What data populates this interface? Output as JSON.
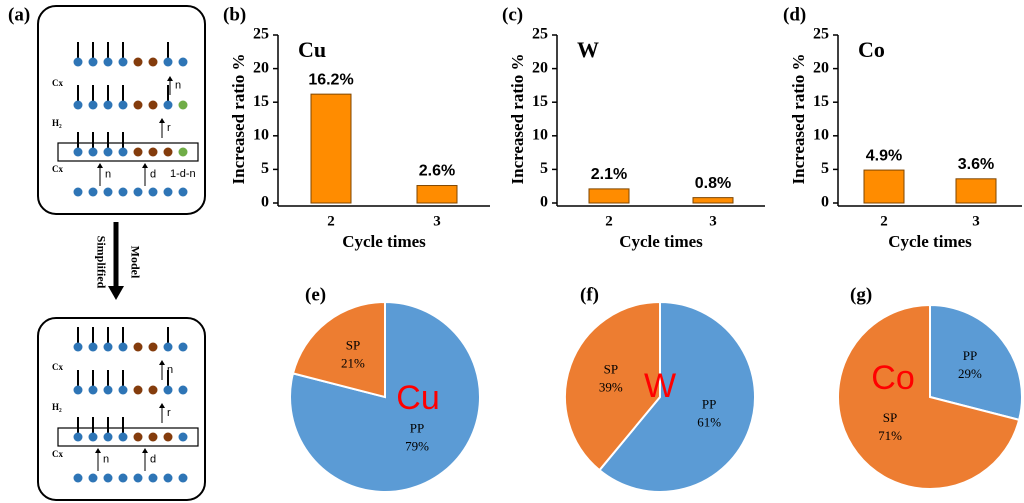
{
  "diagram": {
    "label": "(a)",
    "top_labels": [
      "Cx",
      "H₂",
      "Cx"
    ],
    "top_arrows": [
      "n",
      "r",
      "n",
      "d",
      "1-d-n"
    ],
    "bottom_labels": [
      "Cx",
      "H₂",
      "Cx"
    ],
    "bottom_arrows": [
      "n",
      "r",
      "n",
      "d"
    ],
    "transition": [
      "Simplified",
      "Model"
    ]
  },
  "chart_data": [
    {
      "type": "bar",
      "label": "(b)",
      "title": "Cu",
      "x_label": "Cycle times",
      "y_label": "Increased ratio %",
      "categories": [
        "2",
        "3"
      ],
      "values": [
        16.2,
        2.6
      ],
      "value_labels": [
        "16.2%",
        "2.6%"
      ],
      "color": "#ff8c00",
      "ylim": [
        0,
        25
      ],
      "yticks": [
        0,
        5,
        10,
        15,
        20,
        25
      ]
    },
    {
      "type": "bar",
      "label": "(c)",
      "title": "W",
      "x_label": "Cycle times",
      "y_label": "Increased ratio %",
      "categories": [
        "2",
        "3"
      ],
      "values": [
        2.1,
        0.8
      ],
      "value_labels": [
        "2.1%",
        "0.8%"
      ],
      "color": "#ff8c00",
      "ylim": [
        0,
        25
      ],
      "yticks": [
        0,
        5,
        10,
        15,
        20,
        25
      ]
    },
    {
      "type": "bar",
      "label": "(d)",
      "title": "Co",
      "x_label": "Cycle times",
      "y_label": "Increased ratio %",
      "categories": [
        "2",
        "3"
      ],
      "values": [
        4.9,
        3.6
      ],
      "value_labels": [
        "4.9%",
        "3.6%"
      ],
      "color": "#ff8c00",
      "ylim": [
        0,
        25
      ],
      "yticks": [
        0,
        5,
        10,
        15,
        20,
        25
      ]
    },
    {
      "type": "pie",
      "label": "(e)",
      "annotation": "Cu",
      "categories": [
        "PP",
        "SP"
      ],
      "values": [
        79,
        21
      ],
      "value_labels": [
        "79%",
        "21%"
      ],
      "colors": [
        "#5b9bd5",
        "#ed7d31"
      ]
    },
    {
      "type": "pie",
      "label": "(f)",
      "annotation": "W",
      "categories": [
        "PP",
        "SP"
      ],
      "values": [
        61,
        39
      ],
      "value_labels": [
        "61%",
        "39%"
      ],
      "colors": [
        "#5b9bd5",
        "#ed7d31"
      ]
    },
    {
      "type": "pie",
      "label": "(g)",
      "annotation": "Co",
      "categories": [
        "PP",
        "SP"
      ],
      "values": [
        29,
        71
      ],
      "value_labels": [
        "29%",
        "71%"
      ],
      "colors": [
        "#5b9bd5",
        "#ed7d31"
      ]
    }
  ]
}
